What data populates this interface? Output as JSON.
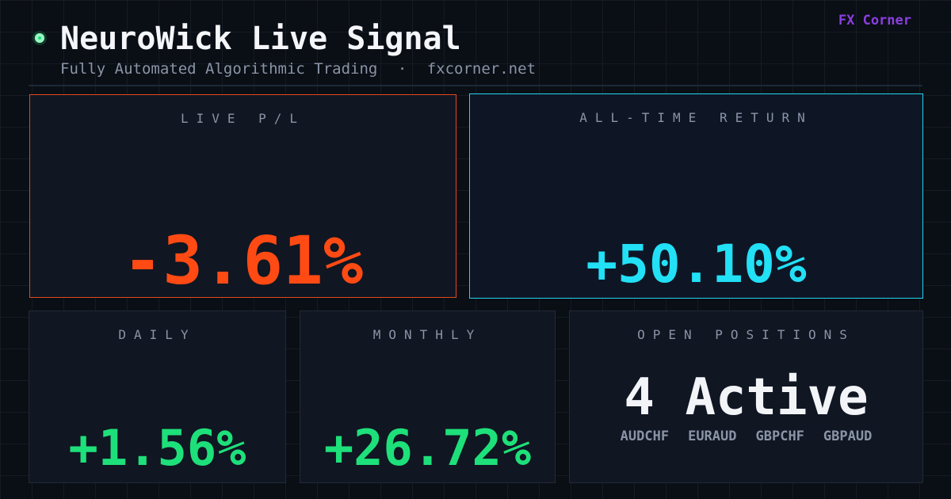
{
  "header": {
    "title": "NeuroWick Live Signal",
    "subtitle": "Fully Automated Algorithmic Trading",
    "separator": "·",
    "site": "fxcorner.net",
    "brand": "FX Corner"
  },
  "panels": {
    "live_pl": {
      "label": "LIVE P/L",
      "value": "-3.61%"
    },
    "all_time": {
      "label": "ALL-TIME RETURN",
      "value": "+50.10%"
    },
    "daily": {
      "label": "DAILY",
      "value": "+1.56%"
    },
    "monthly": {
      "label": "MONTHLY",
      "value": "+26.72%"
    },
    "open_positions": {
      "label": "OPEN POSITIONS",
      "value": "4 Active",
      "pairs": [
        "AUDCHF",
        "EURAUD",
        "GBPCHF",
        "GBPAUD"
      ]
    }
  }
}
